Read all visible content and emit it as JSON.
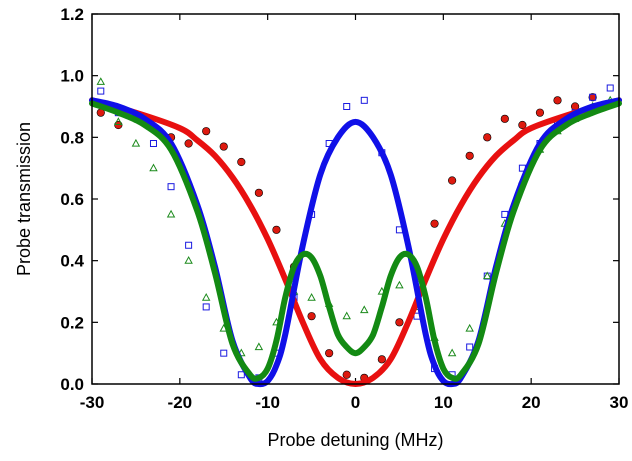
{
  "chart_data": {
    "type": "scatter",
    "title": "",
    "xlabel": "Probe detuning (MHz)",
    "ylabel": "Probe transmission",
    "xlim": [
      -30,
      30
    ],
    "ylim": [
      0,
      1.2
    ],
    "xticks": [
      "-30",
      "-20",
      "-10",
      "0",
      "10",
      "20",
      "30"
    ],
    "yticks": [
      "0.0",
      "0.2",
      "0.4",
      "0.6",
      "0.8",
      "1.0",
      "1.2"
    ],
    "grid": false,
    "legend": "none",
    "series": [
      {
        "kind": "points",
        "marker": "circle",
        "color": "#dd1a0f",
        "x": [
          -29,
          -27,
          -25,
          -23,
          -21,
          -19,
          -17,
          -15,
          -13,
          -11,
          -9,
          -7,
          -5,
          -3,
          -1,
          1,
          3,
          5,
          7,
          9,
          11,
          13,
          15,
          17,
          19,
          21,
          23,
          25,
          27,
          29
        ],
        "y": [
          0.88,
          0.84,
          0.86,
          0.83,
          0.8,
          0.78,
          0.82,
          0.77,
          0.72,
          0.62,
          0.5,
          0.38,
          0.22,
          0.1,
          0.03,
          0.02,
          0.08,
          0.2,
          0.36,
          0.52,
          0.66,
          0.74,
          0.8,
          0.86,
          0.84,
          0.88,
          0.92,
          0.9,
          0.93,
          0.91
        ]
      },
      {
        "kind": "points",
        "marker": "square",
        "color": "#1a1ae0",
        "x": [
          -29,
          -27,
          -25,
          -23,
          -21,
          -19,
          -17,
          -15,
          -13,
          -11,
          -9,
          -7,
          -5,
          -3,
          -1,
          1,
          3,
          5,
          7,
          9,
          11,
          13,
          15,
          17,
          19,
          21,
          23,
          25,
          27,
          29
        ],
        "y": [
          0.95,
          0.88,
          0.87,
          0.78,
          0.64,
          0.45,
          0.25,
          0.1,
          0.03,
          0.02,
          0.1,
          0.28,
          0.55,
          0.78,
          0.9,
          0.92,
          0.75,
          0.5,
          0.22,
          0.05,
          0.03,
          0.12,
          0.35,
          0.55,
          0.7,
          0.78,
          0.85,
          0.88,
          0.93,
          0.96
        ]
      },
      {
        "kind": "points",
        "marker": "triangle",
        "color": "#1b8a1b",
        "x": [
          -29,
          -27,
          -25,
          -23,
          -21,
          -19,
          -17,
          -15,
          -13,
          -11,
          -9,
          -7,
          -5,
          -3,
          -1,
          1,
          3,
          5,
          7,
          9,
          11,
          13,
          15,
          17,
          19,
          21,
          23,
          25,
          27,
          29
        ],
        "y": [
          0.98,
          0.85,
          0.78,
          0.7,
          0.55,
          0.4,
          0.28,
          0.18,
          0.1,
          0.12,
          0.2,
          0.3,
          0.28,
          0.26,
          0.22,
          0.24,
          0.3,
          0.32,
          0.25,
          0.15,
          0.1,
          0.18,
          0.35,
          0.52,
          0.66,
          0.76,
          0.82,
          0.86,
          0.9,
          0.92
        ]
      },
      {
        "kind": "line",
        "color": "#e81010",
        "x": [
          -30,
          -25,
          -20,
          -18,
          -16,
          -14,
          -12,
          -10,
          -8,
          -6,
          -4,
          -2,
          0,
          2,
          4,
          6,
          8,
          10,
          12,
          14,
          16,
          18,
          20,
          25,
          30
        ],
        "y": [
          0.92,
          0.88,
          0.83,
          0.79,
          0.74,
          0.67,
          0.58,
          0.47,
          0.34,
          0.2,
          0.08,
          0.02,
          0.0,
          0.02,
          0.08,
          0.2,
          0.34,
          0.47,
          0.58,
          0.67,
          0.74,
          0.79,
          0.83,
          0.88,
          0.92
        ]
      },
      {
        "kind": "line",
        "color": "#1010e8",
        "x": [
          -30,
          -27,
          -24,
          -21,
          -18,
          -16,
          -14,
          -12,
          -11,
          -10,
          -9,
          -8,
          -6,
          -4,
          -2,
          0,
          2,
          4,
          6,
          8,
          9,
          10,
          11,
          12,
          14,
          16,
          18,
          21,
          24,
          27,
          30
        ],
        "y": [
          0.92,
          0.9,
          0.86,
          0.78,
          0.58,
          0.38,
          0.14,
          0.02,
          0.0,
          0.01,
          0.06,
          0.16,
          0.45,
          0.68,
          0.8,
          0.85,
          0.8,
          0.68,
          0.45,
          0.16,
          0.06,
          0.01,
          0.0,
          0.02,
          0.14,
          0.38,
          0.58,
          0.78,
          0.86,
          0.9,
          0.92
        ]
      },
      {
        "kind": "line",
        "color": "#138a13",
        "x": [
          -30,
          -27,
          -24,
          -21,
          -18,
          -16,
          -14,
          -12,
          -11,
          -10,
          -9,
          -8,
          -7,
          -6,
          -5,
          -4,
          -3,
          -2,
          -1,
          0,
          1,
          2,
          3,
          4,
          5,
          6,
          7,
          8,
          9,
          10,
          11,
          12,
          14,
          16,
          18,
          21,
          24,
          27,
          30
        ],
        "y": [
          0.91,
          0.88,
          0.84,
          0.76,
          0.56,
          0.36,
          0.13,
          0.03,
          0.02,
          0.05,
          0.14,
          0.28,
          0.38,
          0.42,
          0.41,
          0.35,
          0.25,
          0.16,
          0.12,
          0.1,
          0.12,
          0.16,
          0.25,
          0.35,
          0.41,
          0.42,
          0.38,
          0.28,
          0.14,
          0.05,
          0.02,
          0.03,
          0.13,
          0.36,
          0.56,
          0.76,
          0.84,
          0.88,
          0.91
        ]
      }
    ]
  }
}
